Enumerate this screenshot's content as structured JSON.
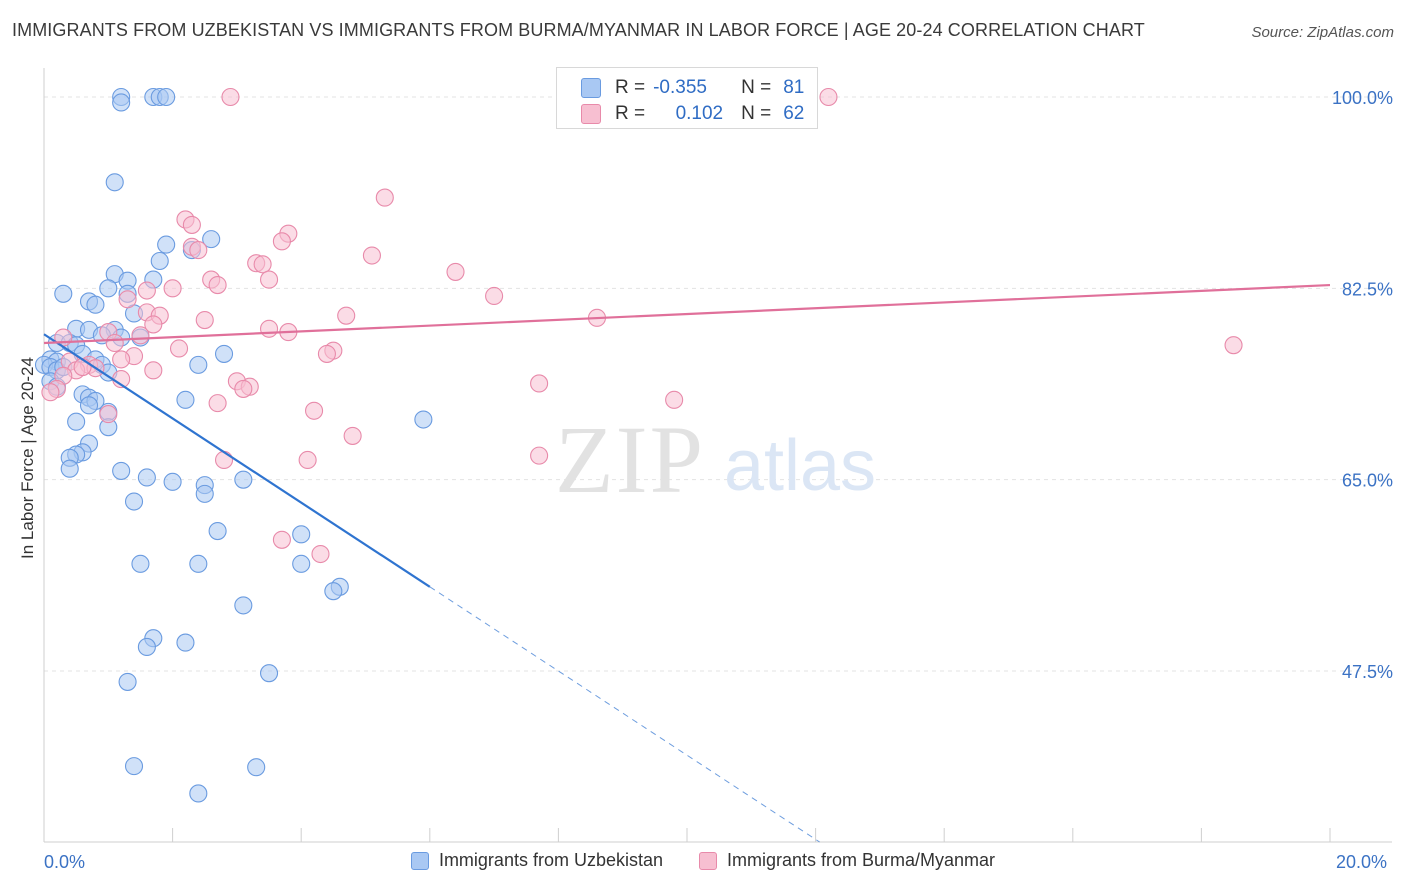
{
  "title": "IMMIGRANTS FROM UZBEKISTAN VS IMMIGRANTS FROM BURMA/MYANMAR IN LABOR FORCE | AGE 20-24 CORRELATION CHART",
  "source": "Source: ZipAtlas.com",
  "watermark": {
    "zip": "ZIP",
    "atlas": "atlas"
  },
  "stats": [
    {
      "r_label": "R =",
      "r_value": "-0.355",
      "n_label": "N =",
      "n_value": "81",
      "color": "#a9c8f3",
      "border": "#6a9be0"
    },
    {
      "r_label": "R =",
      "r_value": "0.102",
      "n_label": "N =",
      "n_value": "62",
      "color": "#f7bfd1",
      "border": "#e88aaa"
    }
  ],
  "chart_data": {
    "type": "scatter",
    "xlabel": "",
    "ylabel": "In Labor Force | Age 20-24",
    "xlim": [
      0,
      20
    ],
    "ylim": [
      32,
      102
    ],
    "x_tick_labels": [
      "0.0%",
      "20.0%"
    ],
    "y_ticks": [
      {
        "value": 100,
        "label": "100.0%"
      },
      {
        "value": 82.5,
        "label": "82.5%"
      },
      {
        "value": 65,
        "label": "65.0%"
      },
      {
        "value": 47.5,
        "label": "47.5%"
      }
    ],
    "grid": true,
    "legend_position": "bottom",
    "series": [
      {
        "name": "Immigrants from Uzbekistan",
        "color": "#6a9be0",
        "fill": "#a9c8f3",
        "trend": {
          "x0": 0,
          "y0": 78.3,
          "x1": 6.0,
          "y1": 55.2,
          "dash_x1": 20.0,
          "slope": -3.85
        },
        "points": [
          [
            1.2,
            100.0
          ],
          [
            1.7,
            100.0
          ],
          [
            1.8,
            100.0
          ],
          [
            1.9,
            100.0
          ],
          [
            1.2,
            99.5
          ],
          [
            1.1,
            92.2
          ],
          [
            2.6,
            87.0
          ],
          [
            1.9,
            86.5
          ],
          [
            2.3,
            86.0
          ],
          [
            1.8,
            85.0
          ],
          [
            1.1,
            83.8
          ],
          [
            0.3,
            82.0
          ],
          [
            1.0,
            82.5
          ],
          [
            1.3,
            83.2
          ],
          [
            1.7,
            83.3
          ],
          [
            0.7,
            81.3
          ],
          [
            0.8,
            81.0
          ],
          [
            1.3,
            82.0
          ],
          [
            1.4,
            80.2
          ],
          [
            0.5,
            78.8
          ],
          [
            0.7,
            78.7
          ],
          [
            1.1,
            78.7
          ],
          [
            0.9,
            78.2
          ],
          [
            1.2,
            78.0
          ],
          [
            1.5,
            78.0
          ],
          [
            0.2,
            77.5
          ],
          [
            0.4,
            77.5
          ],
          [
            0.5,
            77.3
          ],
          [
            0.6,
            76.5
          ],
          [
            0.8,
            76.0
          ],
          [
            0.1,
            76.0
          ],
          [
            0.2,
            75.8
          ],
          [
            0.0,
            75.5
          ],
          [
            0.1,
            75.3
          ],
          [
            0.2,
            75.0
          ],
          [
            0.3,
            75.3
          ],
          [
            0.9,
            75.5
          ],
          [
            1.0,
            74.8
          ],
          [
            2.4,
            75.5
          ],
          [
            2.8,
            76.5
          ],
          [
            0.1,
            74.0
          ],
          [
            0.2,
            73.5
          ],
          [
            0.6,
            72.8
          ],
          [
            0.7,
            72.5
          ],
          [
            0.8,
            72.2
          ],
          [
            0.7,
            71.8
          ],
          [
            1.0,
            71.2
          ],
          [
            2.2,
            72.3
          ],
          [
            0.5,
            70.3
          ],
          [
            1.0,
            69.8
          ],
          [
            0.7,
            68.3
          ],
          [
            0.6,
            67.5
          ],
          [
            0.5,
            67.3
          ],
          [
            0.4,
            67.0
          ],
          [
            0.4,
            66.0
          ],
          [
            1.2,
            65.8
          ],
          [
            1.6,
            65.2
          ],
          [
            2.0,
            64.8
          ],
          [
            2.5,
            64.5
          ],
          [
            3.1,
            65.0
          ],
          [
            2.5,
            63.7
          ],
          [
            1.4,
            63.0
          ],
          [
            2.7,
            60.3
          ],
          [
            4.0,
            60.0
          ],
          [
            1.5,
            57.3
          ],
          [
            2.4,
            57.3
          ],
          [
            4.0,
            57.3
          ],
          [
            4.6,
            55.2
          ],
          [
            4.5,
            54.8
          ],
          [
            3.1,
            53.5
          ],
          [
            1.7,
            50.5
          ],
          [
            1.6,
            49.7
          ],
          [
            2.2,
            50.1
          ],
          [
            1.3,
            46.5
          ],
          [
            3.5,
            47.3
          ],
          [
            1.4,
            38.8
          ],
          [
            3.3,
            38.7
          ],
          [
            2.4,
            36.3
          ],
          [
            5.9,
            70.5
          ]
        ]
      },
      {
        "name": "Immigrants from Burma/Myanmar",
        "color": "#e88aaa",
        "fill": "#f7bfd1",
        "trend": {
          "x0": 0,
          "y0": 77.5,
          "x1": 20.0,
          "y1": 82.8,
          "slope": 0.265
        },
        "points": [
          [
            2.9,
            100.0
          ],
          [
            12.2,
            100.0
          ],
          [
            5.3,
            90.8
          ],
          [
            2.2,
            88.8
          ],
          [
            2.3,
            88.3
          ],
          [
            3.8,
            87.5
          ],
          [
            3.7,
            86.8
          ],
          [
            2.3,
            86.3
          ],
          [
            2.4,
            86.0
          ],
          [
            5.1,
            85.5
          ],
          [
            3.3,
            84.8
          ],
          [
            3.4,
            84.7
          ],
          [
            6.4,
            84.0
          ],
          [
            2.6,
            83.3
          ],
          [
            3.5,
            83.3
          ],
          [
            2.7,
            82.8
          ],
          [
            2.0,
            82.5
          ],
          [
            1.6,
            82.3
          ],
          [
            7.0,
            81.8
          ],
          [
            1.3,
            81.5
          ],
          [
            1.6,
            80.3
          ],
          [
            4.7,
            80.0
          ],
          [
            1.8,
            80.0
          ],
          [
            2.5,
            79.6
          ],
          [
            8.6,
            79.8
          ],
          [
            1.7,
            79.2
          ],
          [
            3.5,
            78.8
          ],
          [
            3.8,
            78.5
          ],
          [
            1.0,
            78.5
          ],
          [
            1.5,
            78.2
          ],
          [
            0.3,
            78.0
          ],
          [
            1.1,
            77.5
          ],
          [
            2.1,
            77.0
          ],
          [
            4.5,
            76.8
          ],
          [
            4.4,
            76.5
          ],
          [
            1.4,
            76.3
          ],
          [
            0.7,
            75.5
          ],
          [
            0.4,
            75.8
          ],
          [
            0.5,
            75.0
          ],
          [
            0.8,
            75.2
          ],
          [
            1.7,
            75.0
          ],
          [
            0.3,
            74.5
          ],
          [
            3.0,
            74.0
          ],
          [
            3.2,
            73.5
          ],
          [
            1.2,
            74.2
          ],
          [
            3.1,
            73.3
          ],
          [
            0.2,
            73.3
          ],
          [
            7.7,
            73.8
          ],
          [
            2.7,
            72.0
          ],
          [
            4.2,
            71.3
          ],
          [
            1.0,
            71.0
          ],
          [
            9.8,
            72.3
          ],
          [
            4.8,
            69.0
          ],
          [
            7.7,
            67.2
          ],
          [
            2.8,
            66.8
          ],
          [
            4.1,
            66.8
          ],
          [
            18.5,
            77.3
          ],
          [
            3.7,
            59.5
          ],
          [
            4.3,
            58.2
          ],
          [
            0.1,
            73.0
          ],
          [
            1.2,
            76.0
          ],
          [
            0.6,
            75.3
          ]
        ]
      }
    ]
  }
}
